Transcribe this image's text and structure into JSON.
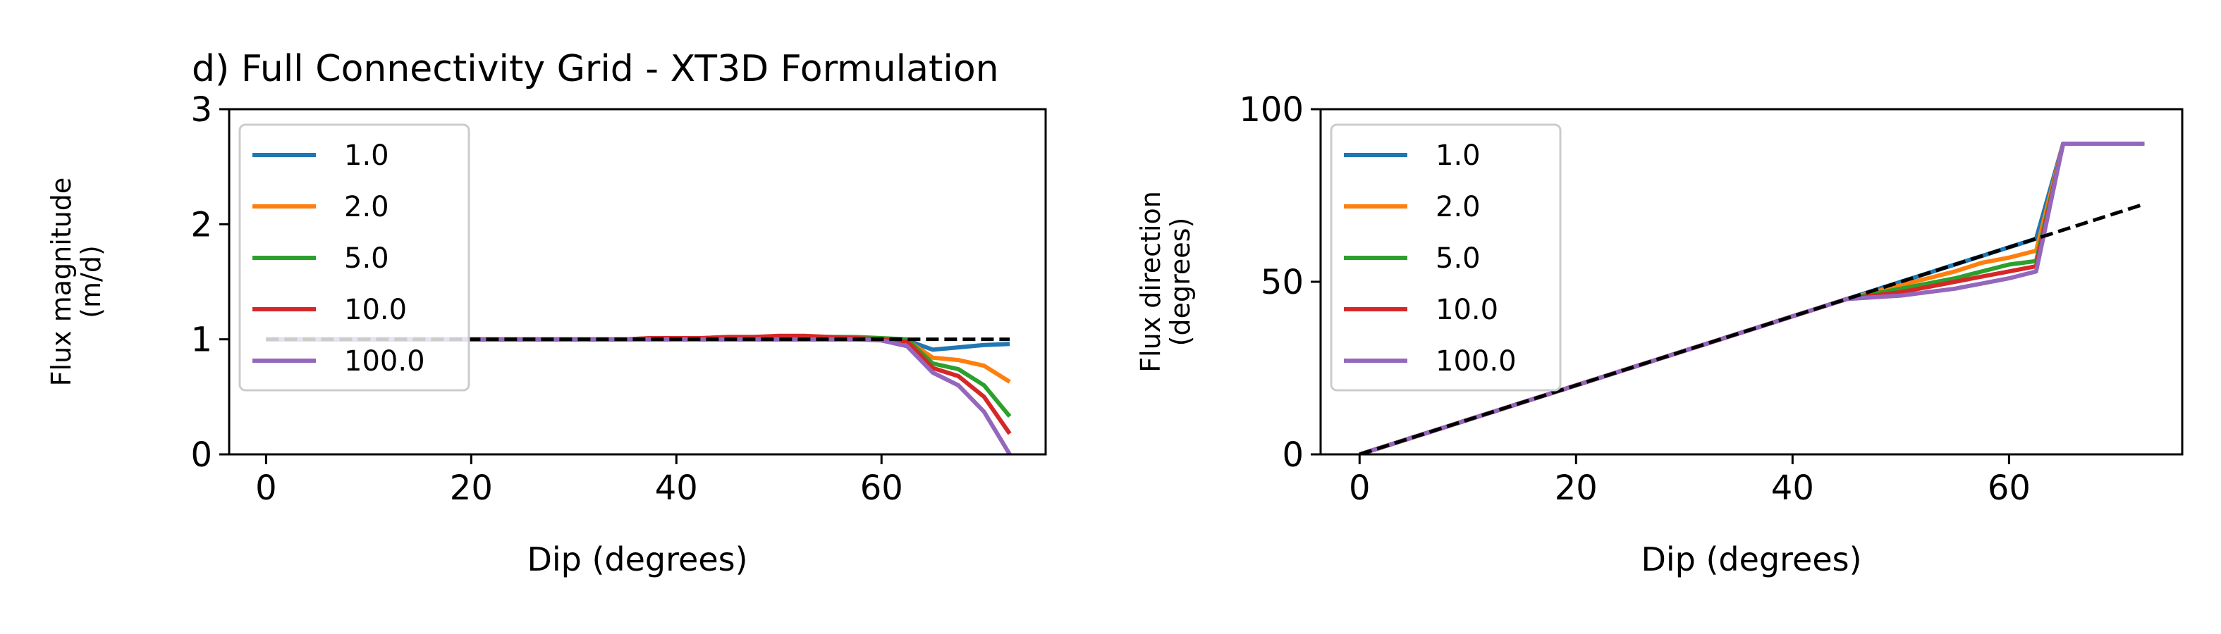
{
  "chart_data": [
    {
      "type": "line",
      "title": "d) Full Connectivity Grid - XT3D Formulation",
      "xlabel": "Dip (degrees)",
      "ylabel": [
        "Flux magnitude",
        "(m/d)"
      ],
      "xlim": [
        -3.6,
        76.0
      ],
      "ylim": [
        0,
        3
      ],
      "xticks": [
        "0",
        "20",
        "40",
        "60"
      ],
      "xtick_values": [
        0,
        20,
        40,
        60
      ],
      "yticks": [
        "0",
        "1",
        "2",
        "3"
      ],
      "ytick_values": [
        0,
        1,
        2,
        3
      ],
      "legend": "upper-left",
      "grid": false,
      "x": [
        0,
        2.5,
        5,
        7.5,
        10,
        12.5,
        15,
        17.5,
        20,
        22.5,
        25,
        27.5,
        30,
        32.5,
        35,
        37.5,
        40,
        42.5,
        45,
        47.5,
        50,
        52.5,
        55,
        57.5,
        60,
        62.5,
        65,
        67.5,
        70,
        72.5
      ],
      "series": [
        {
          "name": "1.0",
          "color": "#1f77b4",
          "values": [
            1,
            1,
            1,
            1,
            1,
            1,
            1,
            1,
            1,
            1,
            1,
            1,
            1,
            1,
            1,
            1,
            1,
            1,
            1,
            1,
            1,
            1,
            1,
            1,
            1,
            0.99,
            0.91,
            0.93,
            0.95,
            0.96
          ]
        },
        {
          "name": "2.0",
          "color": "#ff7f0e",
          "values": [
            1,
            1,
            1,
            1,
            1,
            1,
            1,
            1,
            1,
            1,
            1,
            1,
            1,
            1,
            1,
            1,
            1,
            1,
            1,
            1,
            1,
            1,
            1,
            1,
            1,
            0.99,
            0.84,
            0.82,
            0.77,
            0.63
          ]
        },
        {
          "name": "5.0",
          "color": "#2ca02c",
          "values": [
            1,
            1,
            1,
            1,
            1,
            1,
            1,
            1,
            1,
            1,
            1,
            1,
            1,
            1,
            1,
            1.01,
            1.01,
            1.01,
            1.02,
            1.02,
            1.02,
            1.02,
            1.02,
            1.02,
            1.01,
            1.0,
            0.79,
            0.74,
            0.6,
            0.33
          ]
        },
        {
          "name": "10.0",
          "color": "#d62728",
          "values": [
            1,
            1,
            1,
            1,
            1,
            1,
            1,
            1,
            1,
            1,
            1,
            1,
            1,
            1,
            1,
            1.01,
            1.01,
            1.01,
            1.02,
            1.02,
            1.03,
            1.03,
            1.02,
            1.01,
            1.0,
            0.98,
            0.75,
            0.68,
            0.5,
            0.18
          ]
        },
        {
          "name": "100.0",
          "color": "#9467bd",
          "values": [
            1,
            1,
            1,
            1,
            1,
            1,
            1,
            1,
            1,
            1,
            1,
            1,
            1,
            1,
            1,
            1,
            1,
            1,
            1,
            1,
            1,
            1,
            1,
            1,
            0.99,
            0.94,
            0.71,
            0.6,
            0.37,
            0.0
          ]
        }
      ],
      "reference": {
        "style": "dashed",
        "color": "#000000",
        "x": [
          0,
          72.5
        ],
        "y": [
          1,
          1
        ]
      }
    },
    {
      "type": "line",
      "title": "",
      "xlabel": "Dip (degrees)",
      "ylabel": [
        "Flux direction",
        "(degrees)"
      ],
      "xlim": [
        -3.6,
        76.0
      ],
      "ylim": [
        0,
        100
      ],
      "xticks": [
        "0",
        "20",
        "40",
        "60"
      ],
      "xtick_values": [
        0,
        20,
        40,
        60
      ],
      "yticks": [
        "0",
        "50",
        "100"
      ],
      "ytick_values": [
        0,
        50,
        100
      ],
      "legend": "upper-left",
      "grid": false,
      "x": [
        0,
        2.5,
        5,
        7.5,
        10,
        12.5,
        15,
        17.5,
        20,
        22.5,
        25,
        27.5,
        30,
        32.5,
        35,
        37.5,
        40,
        42.5,
        45,
        47.5,
        50,
        52.5,
        55,
        57.5,
        60,
        62.5,
        65,
        67.5,
        70,
        72.5
      ],
      "series": [
        {
          "name": "1.0",
          "color": "#1f77b4",
          "values": [
            0,
            2.5,
            5,
            7.5,
            10,
            12.5,
            15,
            17.5,
            20,
            22.5,
            25,
            27.5,
            30,
            32.5,
            35,
            37.5,
            40,
            42.5,
            45,
            47.5,
            50,
            52.5,
            55,
            57.5,
            60,
            62.5,
            90,
            90,
            90,
            90
          ]
        },
        {
          "name": "2.0",
          "color": "#ff7f0e",
          "values": [
            0,
            2.5,
            5,
            7.5,
            10,
            12.5,
            15,
            17.5,
            20,
            22.5,
            25,
            27.5,
            30,
            32.5,
            35,
            37.5,
            40,
            42.5,
            45,
            47,
            49,
            51,
            53,
            55.5,
            57,
            59,
            90,
            90,
            90,
            90
          ]
        },
        {
          "name": "5.0",
          "color": "#2ca02c",
          "values": [
            0,
            2.5,
            5,
            7.5,
            10,
            12.5,
            15,
            17.5,
            20,
            22.5,
            25,
            27.5,
            30,
            32.5,
            35,
            37.5,
            40,
            42.5,
            45,
            46.5,
            48,
            49.5,
            51,
            53,
            55,
            56,
            90,
            90,
            90,
            90
          ]
        },
        {
          "name": "10.0",
          "color": "#d62728",
          "values": [
            0,
            2.5,
            5,
            7.5,
            10,
            12.5,
            15,
            17.5,
            20,
            22.5,
            25,
            27.5,
            30,
            32.5,
            35,
            37.5,
            40,
            42.5,
            45,
            46,
            47,
            48.5,
            50,
            51.5,
            53,
            54.5,
            90,
            90,
            90,
            90
          ]
        },
        {
          "name": "100.0",
          "color": "#9467bd",
          "values": [
            0,
            2.5,
            5,
            7.5,
            10,
            12.5,
            15,
            17.5,
            20,
            22.5,
            25,
            27.5,
            30,
            32.5,
            35,
            37.5,
            40,
            42.5,
            45,
            45.5,
            46,
            47,
            48,
            49.5,
            51,
            53,
            90,
            90,
            90,
            90
          ]
        }
      ],
      "reference": {
        "style": "dashed",
        "color": "#000000",
        "x": [
          0,
          72.5
        ],
        "y": [
          0,
          72.5
        ]
      }
    }
  ]
}
